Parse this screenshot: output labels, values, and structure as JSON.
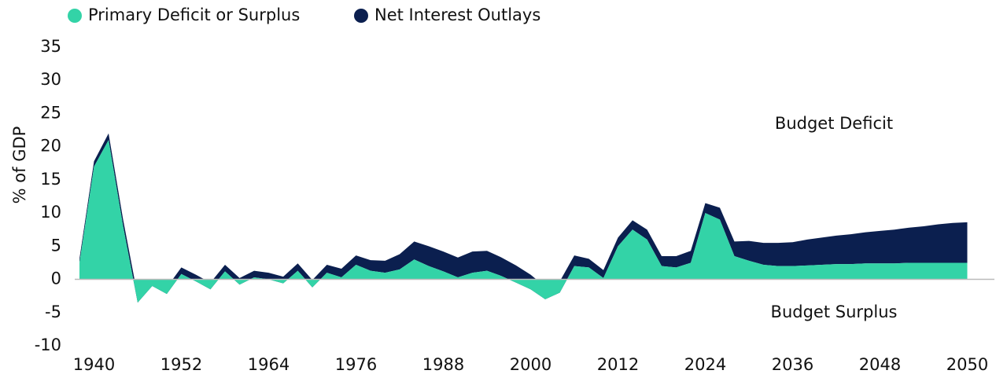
{
  "chart_data": {
    "type": "stacked-area",
    "ylabel": "% of GDP",
    "annotations": [
      "Budget Deficit",
      "Budget Surplus"
    ],
    "categories": [
      null,
      "1940",
      null,
      null,
      null,
      null,
      null,
      "1952",
      null,
      null,
      null,
      null,
      null,
      "1964",
      null,
      null,
      null,
      null,
      null,
      "1976",
      null,
      null,
      null,
      null,
      null,
      "1988",
      null,
      null,
      null,
      null,
      null,
      "2000",
      null,
      null,
      null,
      null,
      null,
      "2012",
      null,
      null,
      null,
      null,
      null,
      "2024",
      null,
      null,
      null,
      null,
      null,
      "2036",
      null,
      null,
      null,
      null,
      null,
      "2048",
      null,
      null,
      null,
      null,
      null,
      "2050"
    ],
    "series": [
      {
        "name": "Primary Deficit or Surplus",
        "color": "#33d3a7",
        "values": [
          2.5,
          17,
          21,
          8,
          -3.5,
          -1,
          -2.2,
          0.8,
          -0.3,
          -1.5,
          1.2,
          -0.8,
          0.3,
          0,
          -0.6,
          1.3,
          -1.2,
          1,
          0.3,
          2.2,
          1.3,
          1,
          1.5,
          3,
          2,
          1.2,
          0.3,
          1,
          1.3,
          0.5,
          -0.5,
          -1.5,
          -3,
          -2,
          2,
          1.8,
          0.2,
          5,
          7.5,
          6,
          2,
          1.8,
          2.5,
          10,
          9,
          3.5,
          2.8,
          2.2,
          2,
          2,
          2.1,
          2.2,
          2.3,
          2.3,
          2.4,
          2.4,
          2.4,
          2.5,
          2.5,
          2.5,
          2.5,
          2.5
        ]
      },
      {
        "name": "Net Interest Outlays",
        "color": "#0b1f4f",
        "values": [
          0.6,
          0.8,
          1,
          1,
          1,
          1,
          1,
          1,
          1,
          1,
          1,
          1,
          1,
          1,
          1,
          1.1,
          1.1,
          1.2,
          1.3,
          1.4,
          1.6,
          1.8,
          2.3,
          2.7,
          3,
          3,
          3,
          3.2,
          3,
          2.8,
          2.6,
          2.2,
          1.9,
          1.7,
          1.6,
          1.3,
          1.2,
          1.3,
          1.4,
          1.5,
          1.5,
          1.7,
          1.8,
          1.5,
          1.8,
          2.2,
          3,
          3.3,
          3.5,
          3.6,
          3.9,
          4.1,
          4.3,
          4.5,
          4.7,
          4.9,
          5.1,
          5.3,
          5.5,
          5.8,
          6.0,
          6.1
        ]
      }
    ],
    "ylim": [
      -10,
      35
    ],
    "yticks": [
      -10,
      -5,
      0,
      5,
      10,
      15,
      20,
      25,
      30,
      35
    ],
    "legend": "top-left"
  }
}
